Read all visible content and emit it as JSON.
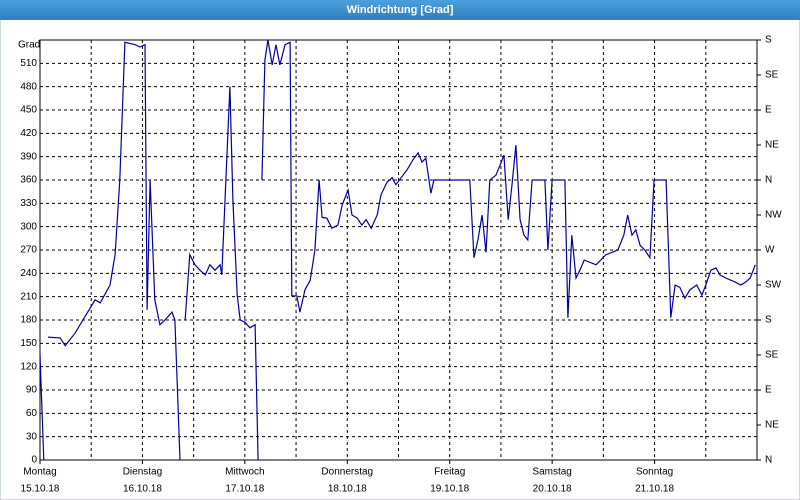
{
  "chart_data": {
    "type": "line",
    "title": "Windrichtung [Grad]",
    "ylabel": "Grad",
    "color": "#0000a0",
    "xlim": [
      0,
      168
    ],
    "ylim": [
      0,
      540
    ],
    "y2lim": [
      0,
      540
    ],
    "xticks": [
      {
        "value": 0,
        "label": "Montag",
        "date": "15.10.18"
      },
      {
        "value": 24,
        "label": "Dienstag",
        "date": "16.10.18"
      },
      {
        "value": 48,
        "label": "Mittwoch",
        "date": "17.10.18"
      },
      {
        "value": 72,
        "label": "Donnerstag",
        "date": "18.10.18"
      },
      {
        "value": 96,
        "label": "Freitag",
        "date": "19.10.18"
      },
      {
        "value": 120,
        "label": "Samstag",
        "date": "20.10.18"
      },
      {
        "value": 144,
        "label": "Sonntag",
        "date": "21.10.18"
      }
    ],
    "xgrid": [
      12,
      36,
      60,
      84,
      108,
      132,
      156
    ],
    "yticks": [
      0,
      30,
      60,
      90,
      120,
      150,
      180,
      210,
      240,
      270,
      300,
      330,
      360,
      390,
      420,
      450,
      480,
      510
    ],
    "y2ticks": [
      {
        "value": 0,
        "label": "N"
      },
      {
        "value": 45,
        "label": "NE"
      },
      {
        "value": 90,
        "label": "E"
      },
      {
        "value": 135,
        "label": "SE"
      },
      {
        "value": 180,
        "label": "S"
      },
      {
        "value": 225,
        "label": "SW"
      },
      {
        "value": 270,
        "label": "W"
      },
      {
        "value": 315,
        "label": "NW"
      },
      {
        "value": 360,
        "label": "N"
      },
      {
        "value": 405,
        "label": "NE"
      },
      {
        "value": 450,
        "label": "E"
      },
      {
        "value": 495,
        "label": "SE"
      },
      {
        "value": 540,
        "label": "S"
      }
    ],
    "grid": true,
    "x": [
      0,
      0.9,
      null,
      1.9,
      4.7,
      5.9,
      8.2,
      12.9,
      14.1,
      16.4,
      17.6,
      18.7,
      19.9,
      22.3,
      23.4,
      24.6,
      25.1,
      25.8,
      26.9,
      28.1,
      29.3,
      30.9,
      31.6,
      32.8,
      null,
      34.0,
      35.1,
      36.3,
      37.5,
      38.7,
      39.8,
      41.0,
      42.2,
      42.6,
      44.5,
      45.2,
      46.2,
      46.9,
      48.0,
      49.2,
      50.4,
      51.1,
      null,
      52.0,
      52.7,
      53.4,
      54.4,
      55.3,
      56.2,
      57.4,
      58.6,
      59.0,
      60.2,
      60.9,
      62.1,
      63.3,
      64.4,
      65.4,
      66.1,
      67.2,
      68.4,
      69.8,
      70.8,
      72.2,
      73.1,
      74.3,
      75.4,
      76.4,
      77.6,
      79.0,
      79.9,
      81.3,
      82.5,
      83.4,
      84.6,
      86.0,
      87.4,
      88.6,
      89.5,
      90.4,
      91.6,
      92.3,
      100.7,
      101.7,
      102.6,
      103.6,
      104.5,
      105.4,
      106.8,
      107.8,
      108.7,
      109.7,
      110.6,
      111.5,
      112.5,
      113.4,
      114.3,
      115.3,
      118.3,
      119.0,
      120.0,
      123.0,
      123.7,
      124.6,
      125.6,
      126.5,
      127.5,
      130.3,
      132.6,
      135.4,
      136.8,
      137.7,
      138.7,
      139.6,
      140.6,
      141.7,
      142.9,
      143.9,
      146.7,
      147.1,
      147.8,
      148.8,
      149.9,
      151.1,
      152.3,
      153.9,
      155.1,
      156.0,
      157.2,
      158.4,
      159.3,
      160.7,
      162.8,
      164.2,
      165.4,
      166.4,
      167.6
    ],
    "values": [
      135,
      0,
      null,
      158,
      157,
      147,
      163,
      206,
      202,
      225,
      264,
      360,
      537,
      534,
      531,
      534,
      193,
      360,
      206,
      174,
      180,
      190,
      180,
      0,
      null,
      180,
      264,
      251,
      244,
      238,
      251,
      244,
      251,
      238,
      480,
      334,
      212,
      180,
      177,
      170,
      174,
      0,
      null,
      360,
      514,
      540,
      508,
      534,
      508,
      534,
      537,
      211,
      211,
      190,
      219,
      231,
      270,
      360,
      312,
      311,
      298,
      302,
      328,
      347,
      315,
      311,
      302,
      309,
      298,
      315,
      341,
      357,
      363,
      354,
      363,
      373,
      386,
      395,
      383,
      388,
      343,
      360,
      360,
      260,
      283,
      315,
      267,
      360,
      366,
      379,
      392,
      309,
      354,
      405,
      309,
      289,
      283,
      360,
      360,
      270,
      360,
      360,
      183,
      289,
      234,
      244,
      257,
      251,
      264,
      270,
      289,
      315,
      289,
      296,
      276,
      270,
      260,
      360,
      360,
      296,
      183,
      225,
      222,
      208,
      219,
      225,
      212,
      225,
      244,
      247,
      238,
      234,
      229,
      225,
      229,
      234,
      251
    ]
  }
}
